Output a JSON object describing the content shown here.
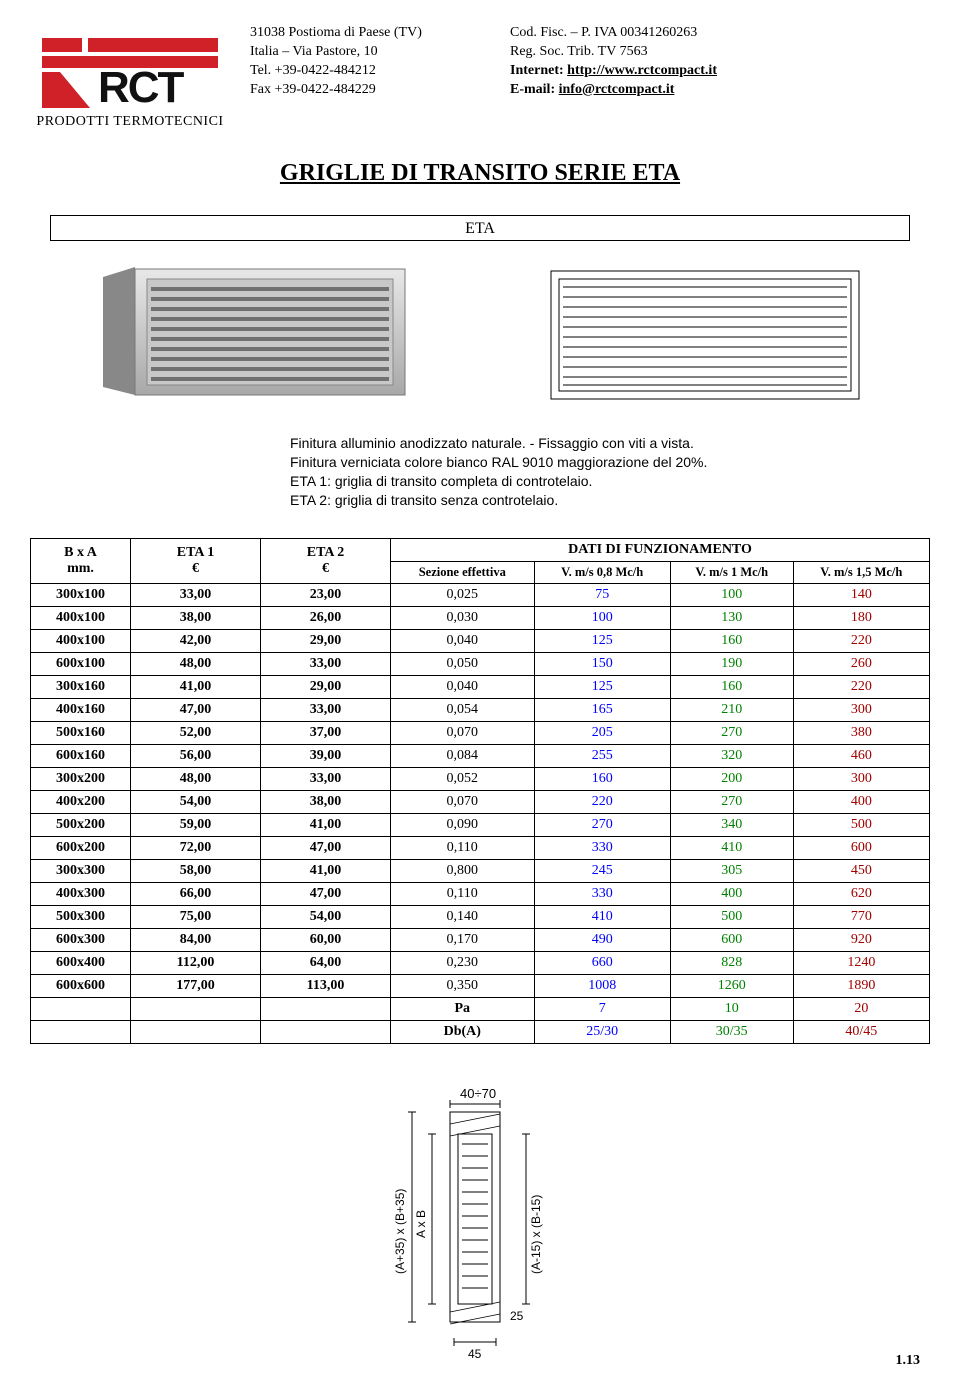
{
  "header": {
    "logo_subtitle": "PRODOTTI TERMOTECNICI",
    "address": {
      "line1": "31038 Postioma di Paese (TV)",
      "line2": "Italia – Via Pastore, 10",
      "line3": "Tel. +39-0422-484212",
      "line4": "Fax +39-0422-484229"
    },
    "legal": {
      "line1": "Cod. Fisc. – P. IVA 00341260263",
      "line2": "Reg. Soc. Trib. TV 7563",
      "internet_label": "Internet: ",
      "internet_url": "http://www.rctcompact.it",
      "email_label": "E-mail: ",
      "email_url": "info@rctcompact.it"
    }
  },
  "title": "GRIGLIE DI TRANSITO SERIE ETA",
  "eta_label": "ETA",
  "description": {
    "l1": "Finitura alluminio anodizzato naturale. - Fissaggio con viti a vista.",
    "l2": "Finitura verniciata colore bianco RAL 9010 maggiorazione del 20%.",
    "l3": "ETA 1: griglia di transito completa di controtelaio.",
    "l4": "ETA 2: griglia di transito senza controtelaio."
  },
  "table": {
    "head": {
      "bxa_top": "B x A",
      "bxa_bot": "mm.",
      "eta1_top": "ETA 1",
      "eta1_bot": "€",
      "eta2_top": "ETA 2",
      "eta2_bot": "€",
      "dati": "DATI DI FUNZIONAMENTO",
      "sez": "Sezione effettiva",
      "v08": "V. m/s 0,8 Mc/h",
      "v10": "V. m/s 1 Mc/h",
      "v15": "V. m/s 1,5 Mc/h"
    },
    "rows": [
      {
        "dim": "300x100",
        "e1": "33,00",
        "e2": "23,00",
        "sez": "0,025",
        "v08": "75",
        "v10": "100",
        "v15": "140"
      },
      {
        "dim": "400x100",
        "e1": "38,00",
        "e2": "26,00",
        "sez": "0,030",
        "v08": "100",
        "v10": "130",
        "v15": "180"
      },
      {
        "dim": "400x100",
        "e1": "42,00",
        "e2": "29,00",
        "sez": "0,040",
        "v08": "125",
        "v10": "160",
        "v15": "220"
      },
      {
        "dim": "600x100",
        "e1": "48,00",
        "e2": "33,00",
        "sez": "0,050",
        "v08": "150",
        "v10": "190",
        "v15": "260"
      },
      {
        "dim": "300x160",
        "e1": "41,00",
        "e2": "29,00",
        "sez": "0,040",
        "v08": "125",
        "v10": "160",
        "v15": "220"
      },
      {
        "dim": "400x160",
        "e1": "47,00",
        "e2": "33,00",
        "sez": "0,054",
        "v08": "165",
        "v10": "210",
        "v15": "300"
      },
      {
        "dim": "500x160",
        "e1": "52,00",
        "e2": "37,00",
        "sez": "0,070",
        "v08": "205",
        "v10": "270",
        "v15": "380"
      },
      {
        "dim": "600x160",
        "e1": "56,00",
        "e2": "39,00",
        "sez": "0,084",
        "v08": "255",
        "v10": "320",
        "v15": "460"
      },
      {
        "dim": "300x200",
        "e1": "48,00",
        "e2": "33,00",
        "sez": "0,052",
        "v08": "160",
        "v10": "200",
        "v15": "300"
      },
      {
        "dim": "400x200",
        "e1": "54,00",
        "e2": "38,00",
        "sez": "0,070",
        "v08": "220",
        "v10": "270",
        "v15": "400"
      },
      {
        "dim": "500x200",
        "e1": "59,00",
        "e2": "41,00",
        "sez": "0,090",
        "v08": "270",
        "v10": "340",
        "v15": "500"
      },
      {
        "dim": "600x200",
        "e1": "72,00",
        "e2": "47,00",
        "sez": "0,110",
        "v08": "330",
        "v10": "410",
        "v15": "600"
      },
      {
        "dim": "300x300",
        "e1": "58,00",
        "e2": "41,00",
        "sez": "0,800",
        "v08": "245",
        "v10": "305",
        "v15": "450"
      },
      {
        "dim": "400x300",
        "e1": "66,00",
        "e2": "47,00",
        "sez": "0,110",
        "v08": "330",
        "v10": "400",
        "v15": "620"
      },
      {
        "dim": "500x300",
        "e1": "75,00",
        "e2": "54,00",
        "sez": "0,140",
        "v08": "410",
        "v10": "500",
        "v15": "770"
      },
      {
        "dim": "600x300",
        "e1": "84,00",
        "e2": "60,00",
        "sez": "0,170",
        "v08": "490",
        "v10": "600",
        "v15": "920"
      },
      {
        "dim": "600x400",
        "e1": "112,00",
        "e2": "64,00",
        "sez": "0,230",
        "v08": "660",
        "v10": "828",
        "v15": "1240"
      },
      {
        "dim": "600x600",
        "e1": "177,00",
        "e2": "113,00",
        "sez": "0,350",
        "v08": "1008",
        "v10": "1260",
        "v15": "1890"
      }
    ],
    "footer": [
      {
        "label": "Pa",
        "v08": "7",
        "v10": "10",
        "v15": "20"
      },
      {
        "label": "Db(A)",
        "v08": "25/30",
        "v10": "30/35",
        "v15": "40/45"
      }
    ]
  },
  "drawing": {
    "top_label": "40÷70",
    "left_outer": "(A+35) x (B+35)",
    "left_inner": "A x B",
    "right_label": "(A-15) x (B-15)",
    "right_num": "25",
    "bottom_num": "45"
  },
  "page_number": "1.13",
  "colors": {
    "blue": "#0000ff",
    "green": "#008000",
    "red": "#a00000",
    "black": "#000000",
    "logo_red": "#d02028",
    "grey1": "#bfbfbf",
    "grey2": "#9a9a9a",
    "grey3": "#6b6b6b"
  }
}
